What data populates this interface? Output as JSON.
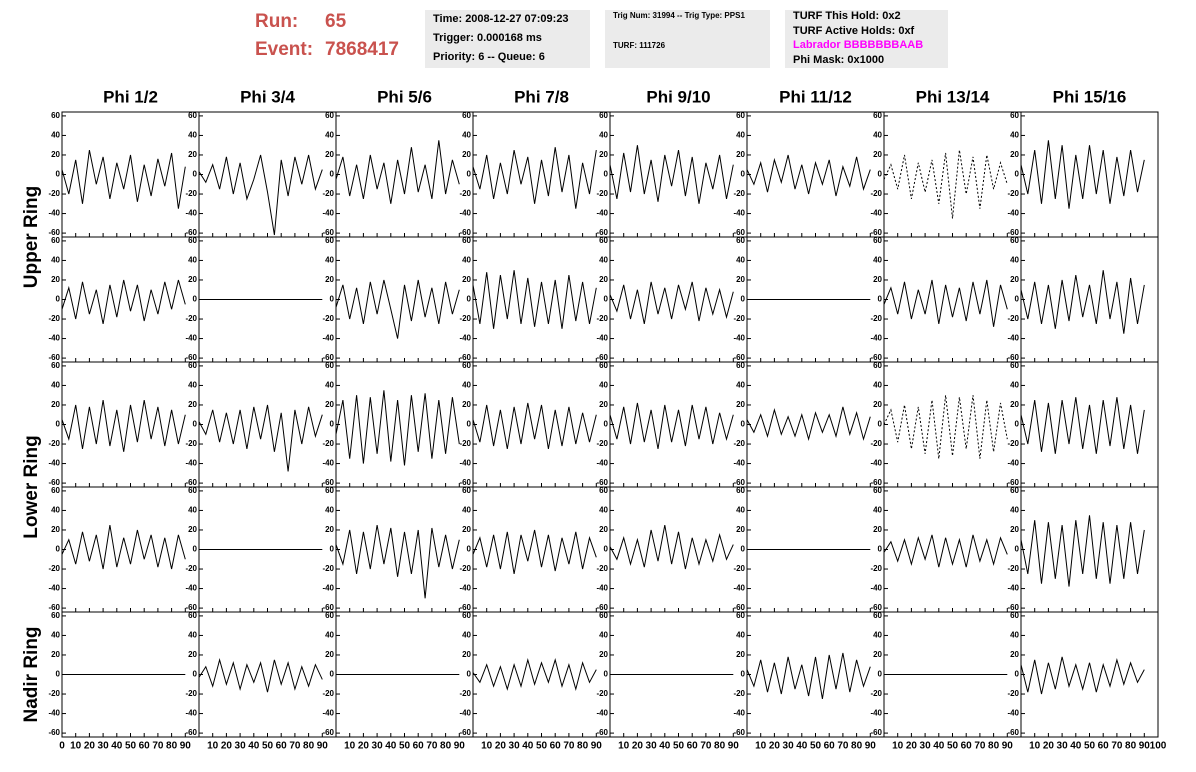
{
  "header": {
    "run": {
      "label": "Run:",
      "value": "65"
    },
    "event": {
      "label": "Event:",
      "value": "7868417"
    },
    "box1": [
      "Time: 2008-12-27 07:09:23",
      "Trigger: 0.000168 ms",
      "Priority: 6 -- Queue: 6"
    ],
    "box2": [
      "Trig Num: 31994 -- Trig Type: PPS1",
      "TURF: 111726"
    ],
    "box3": [
      "TURF This Hold: 0x2",
      "TURF Active Holds: 0xf",
      "Labrador BBBBBBBAAB",
      "Phi Mask: 0x1000"
    ]
  },
  "columns": [
    "Phi 1/2",
    "Phi 3/4",
    "Phi 5/6",
    "Phi 7/8",
    "Phi 9/10",
    "Phi 11/12",
    "Phi 13/14",
    "Phi 15/16"
  ],
  "rows": [
    "Upper Ring",
    "Lower Ring",
    "Nadir Ring"
  ],
  "axes": {
    "x": [
      0,
      5,
      10,
      15,
      20,
      25,
      30,
      35,
      40,
      45,
      50,
      55,
      60,
      65,
      70,
      75,
      80,
      85,
      90
    ],
    "xlim": [
      0,
      100
    ],
    "ylim": [
      -64,
      64
    ],
    "xticks": [
      0,
      10,
      20,
      30,
      40,
      50,
      60,
      70,
      80,
      90,
      100
    ],
    "yticks": [
      -60,
      -40,
      -20,
      0,
      20,
      40,
      60
    ]
  },
  "chart_data": [
    {
      "type": "line",
      "values": [
        5,
        -20,
        15,
        -30,
        25,
        -10,
        18,
        -25,
        12,
        -15,
        20,
        -28,
        10,
        -22,
        16,
        -12,
        22,
        -35,
        8
      ]
    },
    {
      "type": "line",
      "values": [
        3,
        -8,
        10,
        -15,
        18,
        -20,
        12,
        -25,
        -5,
        20,
        -18,
        -62,
        15,
        -22,
        18,
        -10,
        20,
        -15,
        5
      ]
    },
    {
      "type": "line",
      "values": [
        -5,
        18,
        -22,
        10,
        -25,
        20,
        -15,
        12,
        -30,
        15,
        -20,
        28,
        -18,
        10,
        -25,
        35,
        -20,
        15,
        -10
      ]
    },
    {
      "type": "line",
      "values": [
        8,
        -15,
        20,
        -25,
        12,
        -20,
        25,
        -10,
        18,
        -30,
        15,
        -22,
        28,
        -18,
        20,
        -35,
        12,
        -20,
        25
      ]
    },
    {
      "type": "line",
      "values": [
        10,
        -25,
        22,
        -18,
        30,
        -20,
        15,
        -28,
        20,
        -12,
        25,
        -22,
        18,
        -30,
        12,
        -15,
        20,
        -25,
        10
      ]
    },
    {
      "type": "line",
      "values": [
        5,
        -10,
        12,
        -18,
        15,
        -8,
        20,
        -15,
        10,
        -20,
        12,
        -10,
        15,
        -22,
        8,
        -12,
        18,
        -15,
        5
      ]
    },
    {
      "type": "line",
      "dashed": true,
      "values": [
        -5,
        10,
        -15,
        20,
        -25,
        12,
        -18,
        15,
        -30,
        22,
        -45,
        25,
        -20,
        18,
        -35,
        20,
        -15,
        12,
        -10
      ]
    },
    {
      "type": "line",
      "values": [
        10,
        -20,
        25,
        -30,
        35,
        -25,
        30,
        -35,
        20,
        -25,
        30,
        -20,
        25,
        -30,
        18,
        -22,
        25,
        -18,
        15
      ]
    },
    {
      "type": "line",
      "values": [
        -10,
        12,
        -20,
        18,
        -15,
        10,
        -25,
        15,
        -18,
        20,
        -12,
        15,
        -22,
        10,
        -15,
        18,
        -10,
        20,
        -5
      ]
    },
    {
      "type": "line",
      "values": [
        0,
        0,
        0,
        0,
        0,
        0,
        0,
        0,
        0,
        0,
        0,
        0,
        0,
        0,
        0,
        0,
        0,
        0,
        0
      ]
    },
    {
      "type": "line",
      "values": [
        -8,
        15,
        -20,
        12,
        -25,
        18,
        -15,
        20,
        -10,
        -40,
        15,
        -22,
        20,
        -18,
        12,
        -25,
        18,
        -15,
        10
      ]
    },
    {
      "type": "line",
      "values": [
        15,
        -25,
        28,
        -30,
        25,
        -20,
        30,
        -25,
        22,
        -28,
        18,
        -25,
        20,
        -30,
        25,
        -22,
        18,
        -25,
        12
      ]
    },
    {
      "type": "line",
      "values": [
        5,
        -12,
        15,
        -20,
        10,
        -25,
        18,
        -15,
        12,
        -20,
        15,
        -10,
        18,
        -22,
        12,
        -15,
        10,
        -18,
        8
      ]
    },
    {
      "type": "line",
      "values": [
        0,
        0,
        0,
        0,
        0,
        0,
        0,
        0,
        0,
        0,
        0,
        0,
        0,
        0,
        0,
        0,
        0,
        0,
        0
      ]
    },
    {
      "type": "line",
      "values": [
        -5,
        12,
        -15,
        18,
        -20,
        10,
        -15,
        20,
        -25,
        15,
        -18,
        12,
        -22,
        18,
        -15,
        20,
        -28,
        15,
        -10
      ]
    },
    {
      "type": "line",
      "values": [
        10,
        -20,
        18,
        -25,
        15,
        -30,
        20,
        -22,
        25,
        -18,
        15,
        -25,
        30,
        -20,
        18,
        -35,
        22,
        -25,
        15
      ]
    },
    {
      "type": "line",
      "values": [
        5,
        -15,
        20,
        -25,
        18,
        -20,
        25,
        -22,
        15,
        -28,
        20,
        -18,
        25,
        -15,
        18,
        -22,
        15,
        -20,
        10
      ]
    },
    {
      "type": "line",
      "values": [
        3,
        -10,
        15,
        -18,
        12,
        -20,
        15,
        -25,
        18,
        -15,
        20,
        -28,
        12,
        -48,
        15,
        -20,
        18,
        -12,
        10
      ]
    },
    {
      "type": "line",
      "values": [
        -10,
        25,
        -35,
        30,
        -40,
        28,
        -30,
        35,
        -38,
        25,
        -42,
        30,
        -28,
        32,
        -35,
        25,
        -30,
        28,
        -20
      ]
    },
    {
      "type": "line",
      "values": [
        5,
        -18,
        20,
        -22,
        15,
        -25,
        18,
        -20,
        22,
        -15,
        20,
        -25,
        15,
        -22,
        18,
        -20,
        12,
        -18,
        10
      ]
    },
    {
      "type": "line",
      "values": [
        10,
        -15,
        18,
        -20,
        22,
        -18,
        15,
        -25,
        20,
        -18,
        15,
        -22,
        20,
        -15,
        18,
        -20,
        12,
        -15,
        10
      ]
    },
    {
      "type": "line",
      "values": [
        5,
        -8,
        10,
        -12,
        15,
        -10,
        8,
        -12,
        10,
        -15,
        12,
        -8,
        10,
        -12,
        18,
        -10,
        12,
        -15,
        8
      ]
    },
    {
      "type": "line",
      "dashed": true,
      "values": [
        0,
        15,
        -18,
        20,
        -25,
        18,
        -30,
        25,
        -35,
        30,
        -32,
        28,
        -25,
        30,
        -35,
        25,
        -28,
        22,
        -15
      ]
    },
    {
      "type": "line",
      "values": [
        10,
        -20,
        25,
        -28,
        22,
        -30,
        25,
        -20,
        28,
        -25,
        20,
        -30,
        25,
        -22,
        28,
        -25,
        20,
        -30,
        15
      ]
    },
    {
      "type": "line",
      "values": [
        -5,
        10,
        -15,
        18,
        -12,
        15,
        -20,
        25,
        -18,
        12,
        -15,
        20,
        -10,
        15,
        -18,
        12,
        -20,
        15,
        -10
      ]
    },
    {
      "type": "line",
      "values": [
        0,
        0,
        0,
        0,
        0,
        0,
        0,
        0,
        0,
        0,
        0,
        0,
        0,
        0,
        0,
        0,
        0,
        0,
        0
      ]
    },
    {
      "type": "line",
      "values": [
        5,
        -15,
        20,
        -25,
        18,
        -20,
        25,
        -15,
        22,
        -28,
        18,
        -25,
        20,
        -50,
        22,
        -18,
        15,
        -20,
        10
      ]
    },
    {
      "type": "line",
      "values": [
        -5,
        12,
        -18,
        15,
        -20,
        18,
        -25,
        15,
        -12,
        20,
        -18,
        15,
        -22,
        12,
        -15,
        18,
        -20,
        12,
        -8
      ]
    },
    {
      "type": "line",
      "values": [
        3,
        -10,
        12,
        -15,
        10,
        -18,
        20,
        -12,
        25,
        -15,
        18,
        -20,
        12,
        -15,
        10,
        -12,
        15,
        -10,
        5
      ]
    },
    {
      "type": "line",
      "values": [
        0,
        0,
        0,
        0,
        0,
        0,
        0,
        0,
        0,
        0,
        0,
        0,
        0,
        0,
        0,
        0,
        0,
        0,
        0
      ]
    },
    {
      "type": "line",
      "values": [
        -3,
        8,
        -12,
        10,
        -15,
        12,
        -10,
        15,
        -18,
        12,
        -15,
        10,
        -18,
        15,
        -12,
        10,
        -15,
        12,
        -5
      ]
    },
    {
      "type": "line",
      "values": [
        10,
        -25,
        30,
        -35,
        28,
        -30,
        25,
        -38,
        30,
        -25,
        35,
        -30,
        28,
        -35,
        25,
        -30,
        28,
        -25,
        20
      ]
    },
    {
      "type": "line",
      "values": [
        0,
        0,
        0,
        0,
        0,
        0,
        0,
        0,
        0,
        0,
        0,
        0,
        0,
        0,
        0,
        0,
        0,
        0,
        0
      ]
    },
    {
      "type": "line",
      "values": [
        -3,
        8,
        -12,
        15,
        -10,
        12,
        -15,
        10,
        -8,
        12,
        -18,
        15,
        -10,
        12,
        -15,
        8,
        -12,
        10,
        -5
      ]
    },
    {
      "type": "line",
      "values": [
        0,
        0,
        0,
        0,
        0,
        0,
        0,
        0,
        0,
        0,
        0,
        0,
        0,
        0,
        0,
        0,
        0,
        0,
        0
      ]
    },
    {
      "type": "line",
      "values": [
        2,
        -8,
        10,
        -12,
        8,
        -15,
        10,
        -12,
        15,
        -10,
        12,
        -8,
        15,
        -12,
        10,
        -15,
        12,
        -8,
        5
      ]
    },
    {
      "type": "line",
      "values": [
        0,
        0,
        0,
        0,
        0,
        0,
        0,
        0,
        0,
        0,
        0,
        0,
        0,
        0,
        0,
        0,
        0,
        0,
        0
      ]
    },
    {
      "type": "line",
      "values": [
        5,
        -12,
        15,
        -18,
        12,
        -20,
        18,
        -15,
        10,
        -22,
        18,
        -25,
        20,
        -15,
        22,
        -18,
        15,
        -12,
        8
      ]
    },
    {
      "type": "line",
      "values": [
        0,
        0,
        0,
        0,
        0,
        0,
        0,
        0,
        0,
        0,
        0,
        0,
        0,
        0,
        0,
        0,
        0,
        0,
        0
      ]
    },
    {
      "type": "line",
      "values": [
        10,
        -18,
        15,
        -20,
        12,
        -15,
        18,
        -12,
        10,
        -15,
        12,
        -18,
        10,
        -12,
        15,
        -10,
        12,
        -8,
        5
      ]
    }
  ]
}
